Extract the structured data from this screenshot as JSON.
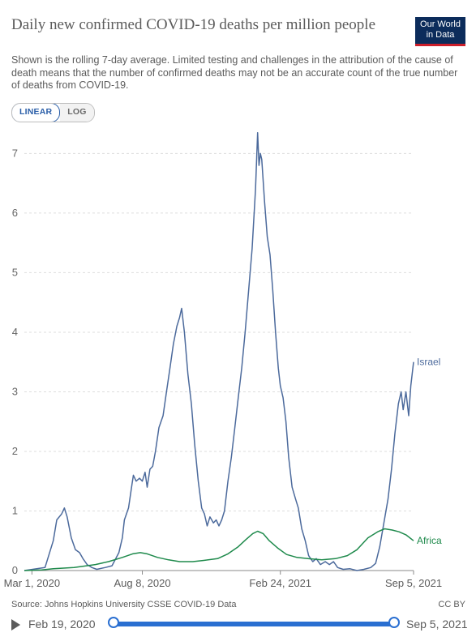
{
  "header": {
    "title": "Daily new confirmed COVID-19 deaths per million people",
    "subtitle": "Shown is the rolling 7-day average. Limited testing and challenges in the attribution of the cause of death means that the number of confirmed deaths may not be an accurate count of the true number of deaths from COVID-19.",
    "logo_line1": "Our World",
    "logo_line2": "in Data",
    "logo_color": "#0c2c5b",
    "logo_accent": "#cc1e2a"
  },
  "scale_toggle": {
    "linear_label": "LINEAR",
    "log_label": "LOG",
    "selected": "LINEAR"
  },
  "footer": {
    "source": "Source: Johns Hopkins University CSSE COVID-19 Data",
    "license": "CC BY"
  },
  "timeline": {
    "start_label": "Feb 19, 2020",
    "end_label": "Sep 5, 2021",
    "range_start_fraction": 0,
    "range_end_fraction": 1
  },
  "chart_data": {
    "type": "line",
    "title": "Daily new confirmed COVID-19 deaths per million people",
    "xlabel": "",
    "ylabel": "",
    "x_range": [
      "2020-02-19",
      "2021-09-05"
    ],
    "ylim": [
      0,
      7.4
    ],
    "yticks": [
      0,
      1,
      2,
      3,
      4,
      5,
      6,
      7
    ],
    "xticks": [
      {
        "date": "2020-03-01",
        "label": "Mar 1, 2020"
      },
      {
        "date": "2020-08-08",
        "label": "Aug 8, 2020"
      },
      {
        "date": "2021-02-24",
        "label": "Feb 24, 2021"
      },
      {
        "date": "2021-09-05",
        "label": "Sep 5, 2021"
      }
    ],
    "grid": "horizontal dashed",
    "legend": "line-end labels",
    "series": [
      {
        "name": "Israel",
        "color": "#4c6a9c",
        "points": [
          [
            "2020-02-19",
            0
          ],
          [
            "2020-03-20",
            0.05
          ],
          [
            "2020-04-01",
            0.5
          ],
          [
            "2020-04-06",
            0.85
          ],
          [
            "2020-04-13",
            0.95
          ],
          [
            "2020-04-17",
            1.05
          ],
          [
            "2020-04-21",
            0.9
          ],
          [
            "2020-04-27",
            0.55
          ],
          [
            "2020-05-03",
            0.35
          ],
          [
            "2020-05-09",
            0.3
          ],
          [
            "2020-05-14",
            0.2
          ],
          [
            "2020-05-20",
            0.1
          ],
          [
            "2020-05-27",
            0.05
          ],
          [
            "2020-06-03",
            0.02
          ],
          [
            "2020-06-15",
            0.05
          ],
          [
            "2020-06-25",
            0.08
          ],
          [
            "2020-07-05",
            0.3
          ],
          [
            "2020-07-10",
            0.55
          ],
          [
            "2020-07-13",
            0.85
          ],
          [
            "2020-07-19",
            1.05
          ],
          [
            "2020-07-24",
            1.45
          ],
          [
            "2020-07-26",
            1.6
          ],
          [
            "2020-07-30",
            1.5
          ],
          [
            "2020-08-04",
            1.55
          ],
          [
            "2020-08-08",
            1.5
          ],
          [
            "2020-08-12",
            1.65
          ],
          [
            "2020-08-15",
            1.4
          ],
          [
            "2020-08-19",
            1.7
          ],
          [
            "2020-08-23",
            1.75
          ],
          [
            "2020-08-27",
            2.0
          ],
          [
            "2020-09-01",
            2.4
          ],
          [
            "2020-09-07",
            2.6
          ],
          [
            "2020-09-12",
            3.0
          ],
          [
            "2020-09-17",
            3.4
          ],
          [
            "2020-09-22",
            3.8
          ],
          [
            "2020-09-27",
            4.1
          ],
          [
            "2020-10-01",
            4.25
          ],
          [
            "2020-10-04",
            4.4
          ],
          [
            "2020-10-08",
            4.0
          ],
          [
            "2020-10-13",
            3.3
          ],
          [
            "2020-10-18",
            2.8
          ],
          [
            "2020-10-23",
            2.1
          ],
          [
            "2020-10-28",
            1.5
          ],
          [
            "2020-11-02",
            1.05
          ],
          [
            "2020-11-06",
            0.95
          ],
          [
            "2020-11-10",
            0.75
          ],
          [
            "2020-11-14",
            0.9
          ],
          [
            "2020-11-19",
            0.8
          ],
          [
            "2020-11-23",
            0.85
          ],
          [
            "2020-11-27",
            0.75
          ],
          [
            "2020-12-01",
            0.85
          ],
          [
            "2020-12-05",
            1.0
          ],
          [
            "2020-12-10",
            1.5
          ],
          [
            "2020-12-15",
            1.9
          ],
          [
            "2020-12-20",
            2.4
          ],
          [
            "2020-12-25",
            2.9
          ],
          [
            "2020-12-30",
            3.4
          ],
          [
            "2021-01-04",
            4.0
          ],
          [
            "2021-01-09",
            4.7
          ],
          [
            "2021-01-14",
            5.4
          ],
          [
            "2021-01-19",
            6.4
          ],
          [
            "2021-01-22",
            7.35
          ],
          [
            "2021-01-24",
            6.8
          ],
          [
            "2021-01-26",
            7.0
          ],
          [
            "2021-01-28",
            6.9
          ],
          [
            "2021-02-01",
            6.2
          ],
          [
            "2021-02-05",
            5.6
          ],
          [
            "2021-02-09",
            5.3
          ],
          [
            "2021-02-13",
            4.7
          ],
          [
            "2021-02-17",
            4.0
          ],
          [
            "2021-02-21",
            3.4
          ],
          [
            "2021-02-24",
            3.1
          ],
          [
            "2021-02-28",
            2.9
          ],
          [
            "2021-03-04",
            2.5
          ],
          [
            "2021-03-08",
            1.9
          ],
          [
            "2021-03-13",
            1.4
          ],
          [
            "2021-03-18",
            1.2
          ],
          [
            "2021-03-22",
            1.05
          ],
          [
            "2021-03-27",
            0.7
          ],
          [
            "2021-04-01",
            0.5
          ],
          [
            "2021-04-06",
            0.25
          ],
          [
            "2021-04-12",
            0.15
          ],
          [
            "2021-04-17",
            0.2
          ],
          [
            "2021-04-23",
            0.1
          ],
          [
            "2021-04-30",
            0.15
          ],
          [
            "2021-05-06",
            0.1
          ],
          [
            "2021-05-12",
            0.15
          ],
          [
            "2021-05-18",
            0.05
          ],
          [
            "2021-05-26",
            0.02
          ],
          [
            "2021-06-05",
            0.03
          ],
          [
            "2021-06-15",
            0.0
          ],
          [
            "2021-06-25",
            0.02
          ],
          [
            "2021-07-05",
            0.05
          ],
          [
            "2021-07-12",
            0.12
          ],
          [
            "2021-07-18",
            0.4
          ],
          [
            "2021-07-24",
            0.8
          ],
          [
            "2021-07-30",
            1.2
          ],
          [
            "2021-08-04",
            1.7
          ],
          [
            "2021-08-09",
            2.3
          ],
          [
            "2021-08-14",
            2.8
          ],
          [
            "2021-08-18",
            3.0
          ],
          [
            "2021-08-21",
            2.7
          ],
          [
            "2021-08-25",
            3.0
          ],
          [
            "2021-08-29",
            2.6
          ],
          [
            "2021-09-01",
            3.1
          ],
          [
            "2021-09-05",
            3.5
          ]
        ]
      },
      {
        "name": "Africa",
        "color": "#1f8a4c",
        "points": [
          [
            "2020-02-19",
            0
          ],
          [
            "2020-03-15",
            0.01
          ],
          [
            "2020-04-01",
            0.03
          ],
          [
            "2020-05-01",
            0.05
          ],
          [
            "2020-06-01",
            0.1
          ],
          [
            "2020-06-20",
            0.15
          ],
          [
            "2020-07-10",
            0.22
          ],
          [
            "2020-07-25",
            0.28
          ],
          [
            "2020-08-05",
            0.3
          ],
          [
            "2020-08-15",
            0.28
          ],
          [
            "2020-08-30",
            0.22
          ],
          [
            "2020-09-15",
            0.18
          ],
          [
            "2020-10-01",
            0.15
          ],
          [
            "2020-10-20",
            0.15
          ],
          [
            "2020-11-05",
            0.17
          ],
          [
            "2020-11-25",
            0.2
          ],
          [
            "2020-12-10",
            0.28
          ],
          [
            "2020-12-25",
            0.4
          ],
          [
            "2021-01-05",
            0.52
          ],
          [
            "2021-01-15",
            0.62
          ],
          [
            "2021-01-22",
            0.66
          ],
          [
            "2021-01-30",
            0.62
          ],
          [
            "2021-02-08",
            0.5
          ],
          [
            "2021-02-20",
            0.38
          ],
          [
            "2021-03-05",
            0.27
          ],
          [
            "2021-03-20",
            0.22
          ],
          [
            "2021-04-05",
            0.2
          ],
          [
            "2021-04-25",
            0.18
          ],
          [
            "2021-05-15",
            0.2
          ],
          [
            "2021-06-01",
            0.25
          ],
          [
            "2021-06-15",
            0.35
          ],
          [
            "2021-07-01",
            0.55
          ],
          [
            "2021-07-15",
            0.65
          ],
          [
            "2021-07-25",
            0.7
          ],
          [
            "2021-08-05",
            0.68
          ],
          [
            "2021-08-15",
            0.65
          ],
          [
            "2021-08-25",
            0.6
          ],
          [
            "2021-09-05",
            0.5
          ]
        ]
      }
    ]
  }
}
